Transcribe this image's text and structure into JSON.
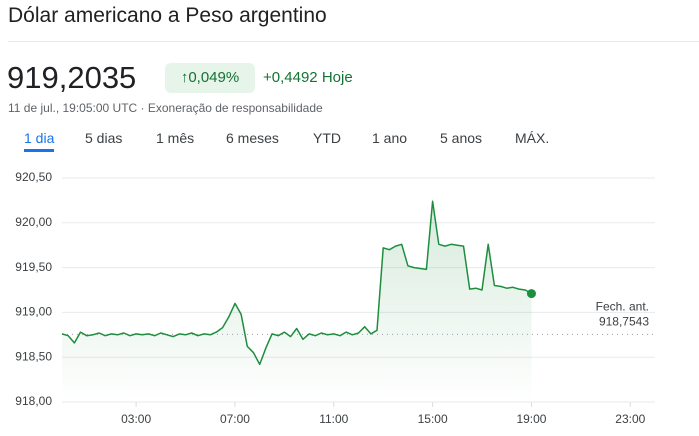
{
  "header": {
    "title": "Dólar americano a Peso argentino",
    "price": "919,2035",
    "change_percent": "0,049%",
    "change": "+0,4492",
    "change_period": "Hoje",
    "timestamp": "11 de jul., 19:05:00 UTC",
    "separator": "·",
    "disclaimer": "Exoneração de responsabilidade"
  },
  "tabs": [
    "1 dia",
    "5 dias",
    "1 mês",
    "6 meses",
    "YTD",
    "1 ano",
    "5 anos",
    "MÁX."
  ],
  "selected_tab": 0,
  "chart_data": {
    "type": "line",
    "color": "#1e8e3e",
    "x": [
      0,
      0.25,
      0.5,
      0.75,
      1,
      1.25,
      1.5,
      1.75,
      2,
      2.25,
      2.5,
      2.75,
      3,
      3.25,
      3.5,
      3.75,
      4,
      4.25,
      4.5,
      4.75,
      5,
      5.25,
      5.5,
      5.75,
      6,
      6.25,
      6.5,
      6.75,
      7,
      7.25,
      7.5,
      7.75,
      8,
      8.25,
      8.5,
      8.75,
      9,
      9.25,
      9.5,
      9.75,
      10,
      10.25,
      10.5,
      10.75,
      11,
      11.25,
      11.5,
      11.75,
      12,
      12.25,
      12.5,
      12.75,
      13,
      13.25,
      13.5,
      13.75,
      14,
      14.25,
      14.5,
      14.75,
      15,
      15.25,
      15.5,
      15.75,
      16,
      16.25,
      16.5,
      16.75,
      17,
      17.25,
      17.5,
      17.75,
      18,
      18.25,
      18.5,
      18.75,
      19
    ],
    "values": [
      918.76,
      918.74,
      918.66,
      918.78,
      918.74,
      918.75,
      918.77,
      918.74,
      918.76,
      918.75,
      918.77,
      918.74,
      918.76,
      918.75,
      918.76,
      918.74,
      918.77,
      918.75,
      918.73,
      918.76,
      918.75,
      918.77,
      918.74,
      918.76,
      918.75,
      918.78,
      918.83,
      918.95,
      919.1,
      918.98,
      918.62,
      918.55,
      918.42,
      918.6,
      918.76,
      918.74,
      918.78,
      918.73,
      918.82,
      918.7,
      918.76,
      918.74,
      918.77,
      918.75,
      918.76,
      918.74,
      918.78,
      918.75,
      918.77,
      918.84,
      918.76,
      918.8,
      919.72,
      919.7,
      919.74,
      919.76,
      919.52,
      919.5,
      919.49,
      919.48,
      920.24,
      919.76,
      919.74,
      919.76,
      919.75,
      919.74,
      919.26,
      919.27,
      919.25,
      919.76,
      919.3,
      919.29,
      919.27,
      919.28,
      919.26,
      919.25,
      919.21
    ],
    "xlim": [
      0,
      24
    ],
    "xticks": [
      {
        "value": 3,
        "label": "03:00"
      },
      {
        "value": 7,
        "label": "07:00"
      },
      {
        "value": 11,
        "label": "11:00"
      },
      {
        "value": 15,
        "label": "15:00"
      },
      {
        "value": 19,
        "label": "19:00"
      },
      {
        "value": 23,
        "label": "23:00"
      }
    ],
    "ylim": [
      918,
      920.5
    ],
    "yticks": [
      {
        "value": 918,
        "label": "918,00"
      },
      {
        "value": 918.5,
        "label": "918,50"
      },
      {
        "value": 919,
        "label": "919,00"
      },
      {
        "value": 919.5,
        "label": "919,50"
      },
      {
        "value": 920,
        "label": "920,00"
      },
      {
        "value": 920.5,
        "label": "920,50"
      }
    ],
    "grid": true,
    "reference_line": {
      "label": "Fech. ant.",
      "value": 918.7543,
      "value_label": "918,7543"
    }
  }
}
